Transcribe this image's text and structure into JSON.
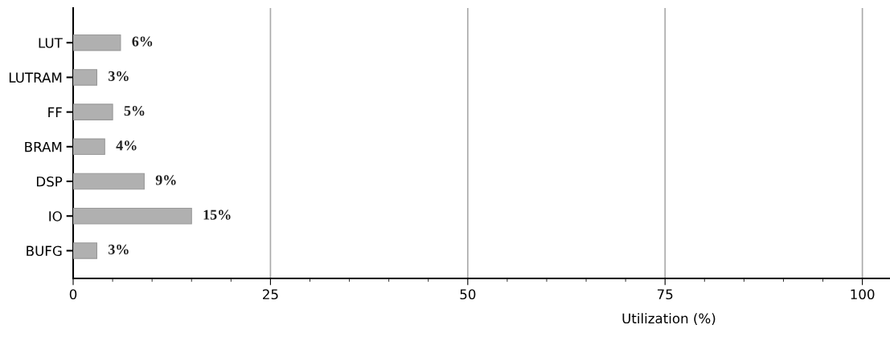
{
  "chart_data": {
    "type": "bar",
    "orientation": "horizontal",
    "xlabel": "Utilization (%)",
    "categories": [
      "LUT",
      "LUTRAM",
      "FF",
      "BRAM",
      "DSP",
      "IO",
      "BUFG"
    ],
    "values": [
      6,
      3,
      5,
      4,
      9,
      15,
      3
    ],
    "color": "#b0b0b0",
    "value_labels": [
      "6%",
      "3%",
      "5%",
      "4%",
      "9%",
      "15%",
      "3%"
    ],
    "xlim": [
      0,
      103.4
    ],
    "xticks": [
      0,
      {
        "value": 5,
        "label": null
      },
      {
        "value": 10,
        "label": null
      },
      {
        "value": 15,
        "label": null
      },
      {
        "value": 20,
        "label": null
      },
      25,
      {
        "value": 30,
        "label": null
      },
      {
        "value": 35,
        "label": null
      },
      {
        "value": 40,
        "label": null
      },
      {
        "value": 45,
        "label": null
      },
      50,
      {
        "value": 55,
        "label": null
      },
      {
        "value": 60,
        "label": null
      },
      {
        "value": 65,
        "label": null
      },
      {
        "value": 70,
        "label": null
      },
      75,
      {
        "value": 80,
        "label": null
      },
      {
        "value": 85,
        "label": null
      },
      {
        "value": 90,
        "label": null
      },
      {
        "value": 95,
        "label": null
      },
      100
    ],
    "grid": "x"
  }
}
